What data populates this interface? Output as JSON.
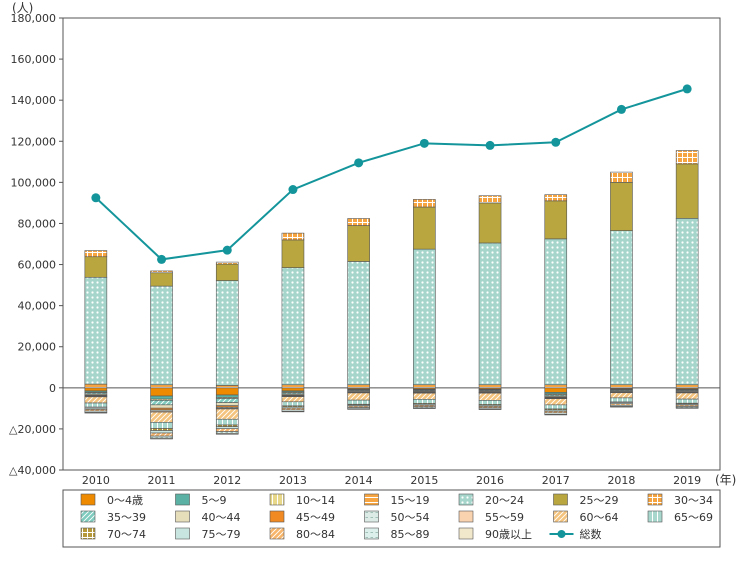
{
  "chart_data": {
    "type": "bar",
    "subtype": "stacked-bar-with-line",
    "y_unit_label": "(人)",
    "x_unit_label": "(年)",
    "ylim": [
      -40000,
      180000
    ],
    "y_ticks": [
      180000,
      160000,
      140000,
      120000,
      100000,
      80000,
      60000,
      40000,
      20000,
      0,
      -20000,
      -40000
    ],
    "y_tick_labels": [
      "180,000",
      "160,000",
      "140,000",
      "120,000",
      "100,000",
      "80,000",
      "60,000",
      "40,000",
      "20,000",
      "0",
      "△20,000",
      "△40,000"
    ],
    "grid": false,
    "legend_position": "bottom",
    "categories": [
      "2010",
      "2011",
      "2012",
      "2013",
      "2014",
      "2015",
      "2016",
      "2017",
      "2018",
      "2019"
    ],
    "series": [
      {
        "name": "0～4歳",
        "color": "#ED8A00",
        "pattern": "solid",
        "values": [
          -1500,
          -4000,
          -3500,
          -1500,
          -500,
          -600,
          -600,
          -2200,
          -400,
          -500
        ]
      },
      {
        "name": "5～9",
        "color": "#5BB2A4",
        "pattern": "solid",
        "values": [
          -600,
          -1500,
          -1200,
          -500,
          -300,
          -300,
          -300,
          -800,
          -300,
          -300
        ]
      },
      {
        "name": "10～14",
        "color": "#E7D88A",
        "pattern": "vlines",
        "values": [
          -400,
          -600,
          -500,
          -400,
          -300,
          -300,
          -300,
          -400,
          -300,
          -300
        ]
      },
      {
        "name": "15～19",
        "color": "#F7A541",
        "pattern": "hlines",
        "values": [
          1800,
          1500,
          1200,
          1500,
          1500,
          1500,
          1500,
          1500,
          1500,
          1500
        ]
      },
      {
        "name": "20～24",
        "color": "#A6D6CB",
        "pattern": "dots",
        "values": [
          52000,
          48000,
          51000,
          57000,
          60000,
          66000,
          69000,
          71000,
          75000,
          81000
        ]
      },
      {
        "name": "25～29",
        "color": "#B9A63F",
        "pattern": "solid",
        "values": [
          10000,
          6500,
          8000,
          13500,
          17500,
          20500,
          19500,
          18500,
          23500,
          26500
        ]
      },
      {
        "name": "30～34",
        "color": "#F5A43F",
        "pattern": "grid",
        "values": [
          3000,
          900,
          1000,
          3300,
          3400,
          3700,
          3500,
          3000,
          5000,
          6500
        ]
      },
      {
        "name": "35～39",
        "color": "#7FCBBE",
        "pattern": "diag",
        "values": [
          -600,
          -2200,
          -2000,
          -600,
          -400,
          -400,
          -400,
          -600,
          -400,
          -400
        ]
      },
      {
        "name": "40～44",
        "color": "#E6DDBB",
        "pattern": "solid",
        "values": [
          -500,
          -1600,
          -1500,
          -500,
          -400,
          -400,
          -400,
          -500,
          -400,
          -400
        ]
      },
      {
        "name": "45～49",
        "color": "#F28A24",
        "pattern": "solid",
        "values": [
          -300,
          -800,
          -700,
          -300,
          -200,
          -200,
          -200,
          -300,
          -200,
          -200
        ]
      },
      {
        "name": "50～54",
        "color": "#DCEBE6",
        "pattern": "dashes",
        "values": [
          -300,
          -600,
          -500,
          -300,
          -200,
          -200,
          -200,
          -300,
          -200,
          -200
        ]
      },
      {
        "name": "55～59",
        "color": "#F9D3B0",
        "pattern": "solid",
        "values": [
          -200,
          -500,
          -400,
          -200,
          -200,
          -200,
          -200,
          -200,
          -200,
          -200
        ]
      },
      {
        "name": "60～64",
        "color": "#F4C47F",
        "pattern": "diag",
        "values": [
          -3000,
          -5000,
          -5000,
          -2500,
          -3500,
          -3000,
          -3500,
          -3000,
          -2500,
          -3000
        ]
      },
      {
        "name": "65～69",
        "color": "#A8D7CD",
        "pattern": "vlines",
        "values": [
          -2000,
          -3000,
          -2800,
          -2000,
          -2000,
          -2000,
          -2000,
          -2000,
          -2000,
          -2000
        ]
      },
      {
        "name": "70～74",
        "color": "#B5983A",
        "pattern": "grid",
        "values": [
          -500,
          -1000,
          -800,
          -500,
          -400,
          -400,
          -400,
          -500,
          -400,
          -400
        ]
      },
      {
        "name": "75～79",
        "color": "#C8E6DF",
        "pattern": "solid",
        "values": [
          -600,
          -1200,
          -1000,
          -600,
          -500,
          -500,
          -500,
          -600,
          -500,
          -500
        ]
      },
      {
        "name": "80～84",
        "color": "#F6B56A",
        "pattern": "diag",
        "values": [
          -800,
          -1500,
          -1400,
          -800,
          -700,
          -700,
          -700,
          -800,
          -700,
          -700
        ]
      },
      {
        "name": "85～89",
        "color": "#DCEFEA",
        "pattern": "dashes",
        "values": [
          -700,
          -1000,
          -900,
          -700,
          -600,
          -600,
          -600,
          -700,
          -600,
          -600
        ]
      },
      {
        "name": "90歳以上",
        "color": "#F1E8CC",
        "pattern": "solid",
        "values": [
          -300,
          -400,
          -400,
          -300,
          -300,
          -300,
          -300,
          -300,
          -300,
          -300
        ]
      }
    ],
    "line_series": {
      "name": "総数",
      "color": "#13959B",
      "values": [
        92500,
        62500,
        67000,
        96500,
        109500,
        119000,
        118000,
        119500,
        135500,
        145500
      ]
    }
  }
}
